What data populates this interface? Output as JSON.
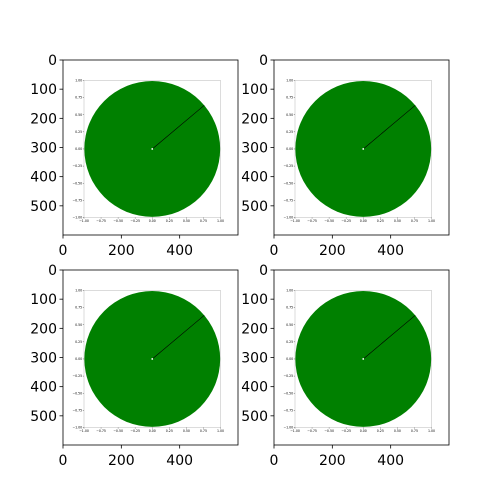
{
  "chart_data": [
    {
      "type": "image",
      "panel": "top-left",
      "outer_axes": {
        "xlim": [
          0,
          600
        ],
        "ylim": [
          600,
          0
        ],
        "xticks": [
          0,
          200,
          400
        ],
        "yticks": [
          0,
          100,
          200,
          300,
          400,
          500
        ],
        "xtick_labels": [
          "0",
          "200",
          "400"
        ],
        "ytick_labels": [
          "0",
          "100",
          "200",
          "300",
          "400",
          "500"
        ]
      },
      "inner_plot": {
        "type": "pie",
        "values": [
          1
        ],
        "slice_color": "#008000",
        "radius_line_angle_deg": 40,
        "xlim": [
          -1.0,
          1.0
        ],
        "ylim": [
          -1.0,
          1.0
        ],
        "xtick_labels": [
          "−1.00",
          "−0.75",
          "−0.50",
          "−0.25",
          "0.00",
          "0.25",
          "0.50",
          "0.75",
          "1.00"
        ],
        "ytick_labels": [
          "1.00",
          "0.75",
          "0.50",
          "0.25",
          "0.00",
          "−0.25",
          "−0.50",
          "−0.75",
          "−1.00"
        ],
        "grid": false
      }
    },
    {
      "type": "image",
      "panel": "top-right",
      "outer_axes": {
        "xlim": [
          0,
          600
        ],
        "ylim": [
          600,
          0
        ],
        "xticks": [
          0,
          200,
          400
        ],
        "yticks": [
          0,
          100,
          200,
          300,
          400,
          500
        ],
        "xtick_labels": [
          "0",
          "200",
          "400"
        ],
        "ytick_labels": [
          "0",
          "100",
          "200",
          "300",
          "400",
          "500"
        ]
      },
      "inner_plot": {
        "type": "pie",
        "values": [
          1
        ],
        "slice_color": "#008000",
        "radius_line_angle_deg": 40,
        "xlim": [
          -1.0,
          1.0
        ],
        "ylim": [
          -1.0,
          1.0
        ],
        "xtick_labels": [
          "−1.00",
          "−0.75",
          "−0.50",
          "−0.25",
          "0.00",
          "0.25",
          "0.50",
          "0.75",
          "1.00"
        ],
        "ytick_labels": [
          "1.00",
          "0.75",
          "0.50",
          "0.25",
          "0.00",
          "−0.25",
          "−0.50",
          "−0.75",
          "−1.00"
        ],
        "grid": false
      }
    },
    {
      "type": "image",
      "panel": "bottom-left",
      "outer_axes": {
        "xlim": [
          0,
          600
        ],
        "ylim": [
          600,
          0
        ],
        "xticks": [
          0,
          200,
          400
        ],
        "yticks": [
          0,
          100,
          200,
          300,
          400,
          500
        ],
        "xtick_labels": [
          "0",
          "200",
          "400"
        ],
        "ytick_labels": [
          "0",
          "100",
          "200",
          "300",
          "400",
          "500"
        ]
      },
      "inner_plot": {
        "type": "pie",
        "values": [
          1
        ],
        "slice_color": "#008000",
        "radius_line_angle_deg": 40,
        "xlim": [
          -1.0,
          1.0
        ],
        "ylim": [
          -1.0,
          1.0
        ],
        "xtick_labels": [
          "−1.00",
          "−0.75",
          "−0.50",
          "−0.25",
          "0.00",
          "0.25",
          "0.50",
          "0.75",
          "1.00"
        ],
        "ytick_labels": [
          "1.00",
          "0.75",
          "0.50",
          "0.25",
          "0.00",
          "−0.25",
          "−0.50",
          "−0.75",
          "−1.00"
        ],
        "grid": false
      }
    },
    {
      "type": "image",
      "panel": "bottom-right",
      "outer_axes": {
        "xlim": [
          0,
          600
        ],
        "ylim": [
          600,
          0
        ],
        "xticks": [
          0,
          200,
          400
        ],
        "yticks": [
          0,
          100,
          200,
          300,
          400,
          500
        ],
        "xtick_labels": [
          "0",
          "200",
          "400"
        ],
        "ytick_labels": [
          "0",
          "100",
          "200",
          "300",
          "400",
          "500"
        ]
      },
      "inner_plot": {
        "type": "pie",
        "values": [
          1
        ],
        "slice_color": "#008000",
        "radius_line_angle_deg": 40,
        "xlim": [
          -1.0,
          1.0
        ],
        "ylim": [
          -1.0,
          1.0
        ],
        "xtick_labels": [
          "−1.00",
          "−0.75",
          "−0.50",
          "−0.25",
          "0.00",
          "0.25",
          "0.50",
          "0.75",
          "1.00"
        ],
        "ytick_labels": [
          "1.00",
          "0.75",
          "0.50",
          "0.25",
          "0.00",
          "−0.25",
          "−0.50",
          "−0.75",
          "−1.00"
        ],
        "grid": false
      }
    }
  ]
}
